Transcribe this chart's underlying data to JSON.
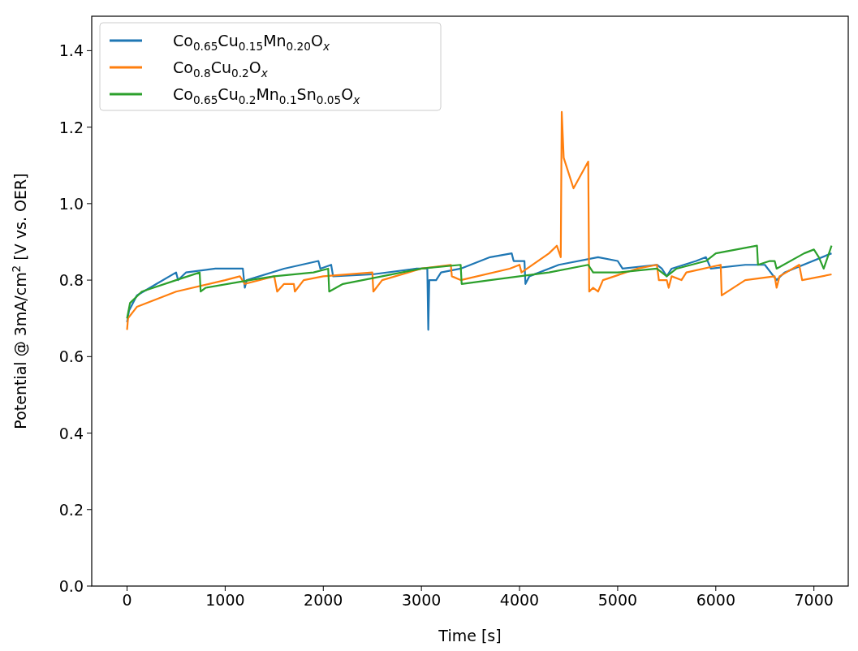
{
  "chart_data": {
    "type": "line",
    "xlabel": "Time [s]",
    "ylabel": "Potential @ 3mA/cm$^{2}$ [V vs. OER]",
    "xlim": [
      -360,
      7350
    ],
    "ylim": [
      0,
      1.49
    ],
    "xticks": [
      0,
      1000,
      2000,
      3000,
      4000,
      5000,
      6000,
      7000
    ],
    "yticks": [
      {
        "value": 0,
        "label": "0.0"
      },
      {
        "value": 0.2,
        "label": "0.2"
      },
      {
        "value": 0.4,
        "label": "0.4"
      },
      {
        "value": 0.6,
        "label": "0.6"
      },
      {
        "value": 0.8,
        "label": "0.8"
      },
      {
        "value": 1,
        "label": "1.0"
      },
      {
        "value": 1.2,
        "label": "1.2"
      },
      {
        "value": 1.4,
        "label": "1.4"
      }
    ],
    "grid": false,
    "legend": "top left",
    "line_style": "solid",
    "marker": "none",
    "series": [
      {
        "name": "Co$_{0.65}$Cu$_{0.15}$Mn$_{0.20}$O$_{x}$",
        "color": "#1f77b4",
        "x": [
          0,
          20,
          100,
          300,
          500,
          520,
          600,
          900,
          1000,
          1180,
          1200,
          1220,
          1600,
          1950,
          1970,
          2080,
          2100,
          2500,
          2950,
          3060,
          3070,
          3080,
          3150,
          3200,
          3400,
          3700,
          3920,
          3940,
          4050,
          4060,
          4100,
          4400,
          4800,
          5000,
          5050,
          5400,
          5450,
          5500,
          5550,
          5800,
          5900,
          5950,
          6300,
          6500,
          6620,
          6700,
          7180
        ],
        "values": [
          0.69,
          0.72,
          0.76,
          0.79,
          0.82,
          0.8,
          0.82,
          0.83,
          0.83,
          0.83,
          0.78,
          0.8,
          0.83,
          0.85,
          0.83,
          0.84,
          0.81,
          0.815,
          0.83,
          0.83,
          0.67,
          0.8,
          0.8,
          0.82,
          0.83,
          0.86,
          0.87,
          0.85,
          0.85,
          0.79,
          0.81,
          0.84,
          0.86,
          0.85,
          0.83,
          0.84,
          0.83,
          0.81,
          0.83,
          0.85,
          0.86,
          0.83,
          0.84,
          0.84,
          0.8,
          0.82,
          0.87
        ]
      },
      {
        "name": "Co$_{0.8}$Cu$_{0.2}$O$_{x}$",
        "color": "#ff7f0e",
        "x": [
          0,
          10,
          100,
          500,
          1000,
          1150,
          1200,
          1500,
          1530,
          1600,
          1700,
          1710,
          1800,
          2000,
          2500,
          2510,
          2600,
          3000,
          3300,
          3310,
          3400,
          3900,
          4000,
          4020,
          4300,
          4380,
          4420,
          4430,
          4450,
          4550,
          4700,
          4710,
          4750,
          4800,
          4850,
          5200,
          5400,
          5420,
          5500,
          5520,
          5550,
          5650,
          5700,
          6050,
          6060,
          6300,
          6600,
          6620,
          6650,
          6850,
          6880,
          7180
        ],
        "values": [
          0.67,
          0.7,
          0.73,
          0.77,
          0.8,
          0.81,
          0.79,
          0.81,
          0.77,
          0.79,
          0.79,
          0.77,
          0.8,
          0.81,
          0.82,
          0.77,
          0.8,
          0.83,
          0.84,
          0.81,
          0.8,
          0.83,
          0.84,
          0.82,
          0.87,
          0.89,
          0.86,
          1.24,
          1.12,
          1.04,
          1.11,
          0.77,
          0.78,
          0.77,
          0.8,
          0.83,
          0.84,
          0.8,
          0.8,
          0.78,
          0.81,
          0.8,
          0.82,
          0.84,
          0.76,
          0.8,
          0.81,
          0.78,
          0.81,
          0.84,
          0.8,
          0.815
        ]
      },
      {
        "name": "Co$_{0.65}$Cu$_{0.2}$Mn$_{0.1}$Sn$_{0.05}$O$_{x}$",
        "color": "#2ca02c",
        "x": [
          0,
          30,
          150,
          500,
          740,
          750,
          800,
          1250,
          1500,
          1900,
          2050,
          2060,
          2200,
          2600,
          3000,
          3400,
          3410,
          3700,
          4000,
          4300,
          4700,
          4750,
          5000,
          5400,
          5450,
          5500,
          5600,
          5900,
          6000,
          6420,
          6430,
          6550,
          6600,
          6620,
          6900,
          7000,
          7050,
          7100,
          7180
        ],
        "values": [
          0.7,
          0.74,
          0.77,
          0.8,
          0.82,
          0.77,
          0.78,
          0.8,
          0.81,
          0.82,
          0.83,
          0.77,
          0.79,
          0.81,
          0.83,
          0.84,
          0.79,
          0.8,
          0.81,
          0.82,
          0.84,
          0.82,
          0.82,
          0.83,
          0.82,
          0.81,
          0.83,
          0.85,
          0.87,
          0.89,
          0.84,
          0.85,
          0.85,
          0.83,
          0.87,
          0.88,
          0.86,
          0.83,
          0.89
        ]
      }
    ]
  }
}
